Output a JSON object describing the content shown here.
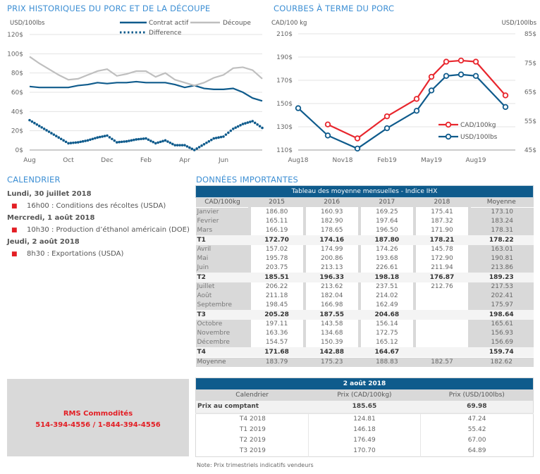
{
  "left_title": "PRIX HISTORIQUES DU PORC ET DE LA DÉCOUPE",
  "right_title": "COURBES À TERME DU PORC",
  "calendar": {
    "title": "CALENDRIER",
    "days": [
      {
        "date": "Lundi, 30 juillet 2018",
        "items": [
          "16h00 : Conditions des récoltes (USDA)"
        ]
      },
      {
        "date": "Mercredi, 1 août 2018",
        "items": [
          "10h30 : Production d’éthanol américain (DOE)"
        ]
      },
      {
        "date": "Jeudi, 2 août 2018",
        "items": [
          "8h30 : Exportations (USDA)"
        ]
      }
    ]
  },
  "important_title": "DONNÉES IMPORTANTES",
  "rms": {
    "name": "RMS Commodités",
    "phone": "514-394-4556 / 1-844-394-4556"
  },
  "monthly_table": {
    "title": "Tableau des moyenne mensuelles - Indice IHX",
    "headers": [
      "CAD/100kg",
      "2015",
      "2016",
      "2017",
      "2018",
      "Moyenne"
    ],
    "rows": [
      {
        "type": "m",
        "cells": [
          "Janvier",
          "186.80",
          "160.93",
          "169.25",
          "175.41",
          "173.10"
        ]
      },
      {
        "type": "m",
        "cells": [
          "Fevrier",
          "165.11",
          "182.90",
          "197.64",
          "187.32",
          "183.24"
        ]
      },
      {
        "type": "m",
        "cells": [
          "Mars",
          "166.19",
          "178.65",
          "196.50",
          "171.90",
          "178.31"
        ]
      },
      {
        "type": "q",
        "cells": [
          "T1",
          "172.70",
          "174.16",
          "187.80",
          "178.21",
          "178.22"
        ]
      },
      {
        "type": "m",
        "cells": [
          "Avril",
          "157.02",
          "174.99",
          "174.26",
          "145.78",
          "163.01"
        ]
      },
      {
        "type": "m",
        "cells": [
          "Mai",
          "195.78",
          "200.86",
          "193.68",
          "172.90",
          "190.81"
        ]
      },
      {
        "type": "m",
        "cells": [
          "Juin",
          "203.75",
          "213.13",
          "226.61",
          "211.94",
          "213.86"
        ]
      },
      {
        "type": "q",
        "cells": [
          "T2",
          "185.51",
          "196.33",
          "198.18",
          "176.87",
          "189.23"
        ]
      },
      {
        "type": "m",
        "cells": [
          "Juillet",
          "206.22",
          "213.62",
          "237.51",
          "212.76",
          "217.53"
        ]
      },
      {
        "type": "m",
        "cells": [
          "Août",
          "211.18",
          "182.04",
          "214.02",
          "",
          "202.41"
        ]
      },
      {
        "type": "m",
        "cells": [
          "Septembre",
          "198.45",
          "166.98",
          "162.49",
          "",
          "175.97"
        ]
      },
      {
        "type": "q",
        "cells": [
          "T3",
          "205.28",
          "187.55",
          "204.68",
          "",
          "198.64"
        ]
      },
      {
        "type": "m",
        "cells": [
          "Octobre",
          "197.11",
          "143.58",
          "156.14",
          "",
          "165.61"
        ]
      },
      {
        "type": "m",
        "cells": [
          "Novembre",
          "163.36",
          "134.68",
          "172.75",
          "",
          "156.93"
        ]
      },
      {
        "type": "m",
        "cells": [
          "Décembre",
          "154.57",
          "150.39",
          "165.12",
          "",
          "156.69"
        ]
      },
      {
        "type": "q",
        "cells": [
          "T4",
          "171.68",
          "142.88",
          "164.67",
          "",
          "159.74"
        ]
      },
      {
        "type": "mo",
        "cells": [
          "Moyenne",
          "183.79",
          "175.23",
          "188.83",
          "182.57",
          "182.62"
        ]
      }
    ]
  },
  "forward_table": {
    "title": "2 août 2018",
    "headers": [
      "Calendrier",
      "Prix (CAD/100kg)",
      "Prix (USD/100lbs)"
    ],
    "spot": [
      "Prix au comptant",
      "185.65",
      "69.98"
    ],
    "rows": [
      [
        "T4 2018",
        "124.81",
        "47.24"
      ],
      [
        "T1 2019",
        "146.18",
        "55.42"
      ],
      [
        "T2 2019",
        "176.49",
        "67.00"
      ],
      [
        "T3 2019",
        "170.70",
        "64.89"
      ]
    ],
    "note": "Note: Prix trimestriels indicatifs vendeurs"
  },
  "chart_data": [
    {
      "type": "line",
      "ylabel": "USD/100lbs",
      "ylim": [
        0,
        120
      ],
      "yticks": [
        "0$",
        "20$",
        "40$",
        "60$",
        "80$",
        "100$",
        "120$"
      ],
      "xticks": [
        "Aug",
        "Oct",
        "Dec",
        "Feb",
        "Apr",
        "Jun"
      ],
      "grid": true,
      "legend": "top-right",
      "series": [
        {
          "name": "Contrat actif",
          "color": "#0f5b8c",
          "style": "solid",
          "values": [
            66,
            65,
            65,
            65,
            65,
            67,
            68,
            70,
            69,
            70,
            70,
            71,
            70,
            70,
            70,
            68,
            65,
            67,
            64,
            63,
            63,
            64,
            60,
            54,
            51
          ]
        },
        {
          "name": "Découpe",
          "color": "#bfbfbf",
          "style": "solid",
          "values": [
            97,
            90,
            84,
            78,
            73,
            74,
            78,
            82,
            84,
            77,
            79,
            82,
            82,
            76,
            80,
            73,
            70,
            67,
            70,
            75,
            78,
            85,
            86,
            83,
            74
          ]
        },
        {
          "name": "Difference",
          "color": "#0f5b8c",
          "style": "dotted",
          "values": [
            31,
            25,
            19,
            13,
            7,
            8,
            10,
            13,
            15,
            8,
            9,
            11,
            12,
            7,
            10,
            5,
            5,
            0,
            6,
            12,
            14,
            22,
            27,
            30,
            23
          ]
        }
      ]
    },
    {
      "type": "line",
      "ylabel": "CAD/100 kg",
      "y2label": "USD/100lbs",
      "ylim": [
        110,
        210
      ],
      "y2lim": [
        45,
        85
      ],
      "yticks": [
        "110$",
        "130$",
        "150$",
        "170$",
        "190$",
        "210$"
      ],
      "y2ticks": [
        "45$",
        "55$",
        "65$",
        "75$",
        "85$"
      ],
      "xticks": [
        "Aug18",
        "Nov18",
        "Feb19",
        "May19",
        "Aug19"
      ],
      "grid": true,
      "legend": "bottom-right",
      "series": [
        {
          "name": "CAD/100kg",
          "color": "#e8262d",
          "axis": "left",
          "x": [
            "Oct18",
            "Dec18",
            "Feb19",
            "Apr19",
            "May19",
            "Jun19",
            "Jul19",
            "Aug19",
            "Oct19"
          ],
          "values": [
            132,
            120,
            139,
            154,
            173,
            186,
            187,
            186,
            157
          ]
        },
        {
          "name": "USD/100lbs",
          "color": "#0f5b8c",
          "axis": "right",
          "x": [
            "Aug18",
            "Oct18",
            "Dec18",
            "Feb19",
            "Apr19",
            "May19",
            "Jun19",
            "Jul19",
            "Aug19",
            "Oct19"
          ],
          "values": [
            59.4,
            50,
            45.5,
            52.5,
            58.5,
            65.5,
            70.5,
            71,
            70.5,
            59.8
          ]
        }
      ]
    }
  ]
}
